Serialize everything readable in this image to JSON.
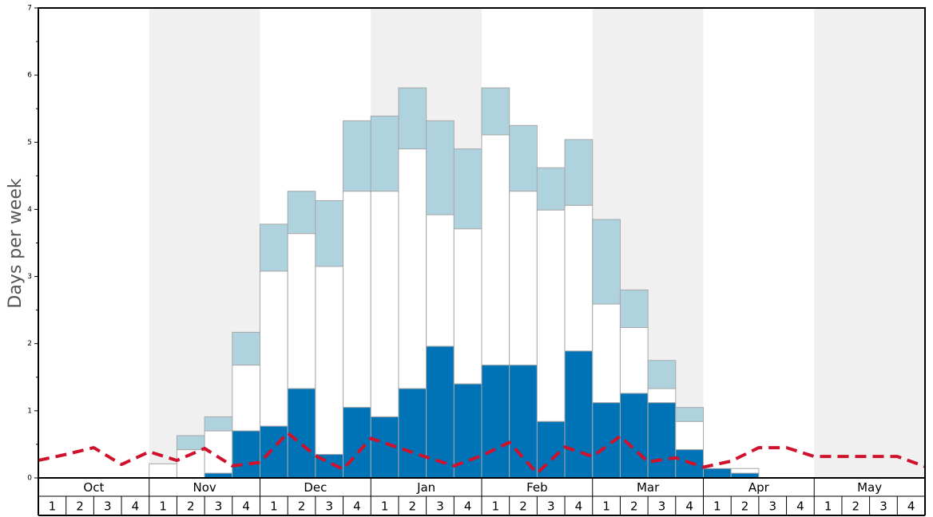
{
  "chart_data": {
    "type": "bar",
    "ylabel": "Days per week",
    "ylim": [
      0,
      7
    ],
    "y_tick_labels": [
      "0",
      "1",
      "2",
      "3",
      "4",
      "5",
      "6",
      "7"
    ],
    "months": [
      "Oct",
      "Nov",
      "Dec",
      "Jan",
      "Feb",
      "Mar",
      "Apr",
      "May"
    ],
    "week_labels": [
      "1",
      "2",
      "3",
      "4"
    ],
    "grid": false,
    "legend": "none",
    "colors": {
      "dark_segment": "#0073b6",
      "white_segment": "#ffffff",
      "light_segment": "#aed3df",
      "line": "#d0112b",
      "shade": "#f0f0f0"
    },
    "series": [
      {
        "segment": "dark",
        "values": [
          0,
          0,
          0,
          0,
          0,
          0,
          0.07,
          0.7,
          0.77,
          1.33,
          0.35,
          1.05,
          0.91,
          1.33,
          1.96,
          1.4,
          1.68,
          1.68,
          0.84,
          1.89,
          1.12,
          1.26,
          1.12,
          0.42,
          0.14,
          0.07,
          0,
          0,
          0,
          0,
          0,
          0
        ]
      },
      {
        "segment": "white",
        "values": [
          0,
          0,
          0,
          0,
          0.21,
          0.42,
          0.7,
          1.68,
          3.08,
          3.64,
          3.15,
          4.27,
          4.27,
          4.9,
          3.92,
          3.71,
          5.11,
          4.27,
          3.99,
          4.06,
          2.59,
          2.24,
          1.33,
          0.84,
          0.14,
          0.14,
          0,
          0,
          0,
          0,
          0,
          0
        ]
      },
      {
        "segment": "light",
        "values": [
          0,
          0,
          0,
          0,
          0.21,
          0.63,
          0.91,
          2.17,
          3.78,
          4.27,
          4.13,
          5.32,
          5.39,
          5.81,
          5.32,
          4.9,
          5.81,
          5.25,
          4.62,
          5.04,
          3.85,
          2.8,
          1.75,
          1.05,
          0.14,
          0.14,
          0,
          0,
          0,
          0,
          0,
          0
        ]
      }
    ],
    "line_values": [
      0.26,
      0.35,
      0.45,
      0.2,
      0.39,
      0.26,
      0.44,
      0.18,
      0.23,
      0.67,
      0.33,
      0.13,
      0.59,
      0.45,
      0.31,
      0.18,
      0.33,
      0.53,
      0.07,
      0.46,
      0.32,
      0.62,
      0.24,
      0.3,
      0.16,
      0.25,
      0.45,
      0.45,
      0.32,
      0.32,
      0.32,
      0.32,
      0.17
    ]
  }
}
